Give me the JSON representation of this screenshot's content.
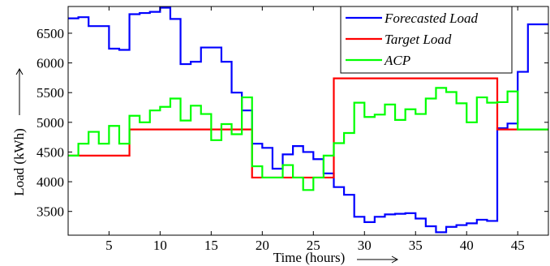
{
  "chart_data": {
    "type": "line",
    "step": true,
    "xlabel": "Time (hours)",
    "ylabel": "Load (kWh)",
    "xlim": [
      1,
      48
    ],
    "ylim": [
      3100,
      6950
    ],
    "xticks": [
      5,
      10,
      15,
      20,
      25,
      30,
      35,
      40,
      45
    ],
    "yticks": [
      3500,
      4000,
      4500,
      5000,
      5500,
      6000,
      6500
    ],
    "grid": false,
    "legend_position": "top-right",
    "x": [
      1,
      2,
      3,
      4,
      5,
      6,
      7,
      8,
      9,
      10,
      11,
      12,
      13,
      14,
      15,
      16,
      17,
      18,
      19,
      20,
      21,
      22,
      23,
      24,
      25,
      26,
      27,
      28,
      29,
      30,
      31,
      32,
      33,
      34,
      35,
      36,
      37,
      38,
      39,
      40,
      41,
      42,
      43,
      44,
      45,
      46,
      47,
      48
    ],
    "series": [
      {
        "name": "Forecasted Load",
        "color": "#0000ff",
        "values": [
          6750,
          6770,
          6620,
          6620,
          6240,
          6220,
          6820,
          6840,
          6860,
          6930,
          6740,
          5980,
          6020,
          6260,
          6260,
          6020,
          5500,
          5200,
          4640,
          4570,
          4220,
          4460,
          4600,
          4500,
          4380,
          4140,
          3910,
          3780,
          3410,
          3320,
          3410,
          3450,
          3460,
          3470,
          3380,
          3250,
          3150,
          3240,
          3270,
          3300,
          3360,
          3340,
          4900,
          4980,
          5850,
          6650,
          6650,
          6650
        ]
      },
      {
        "name": "Target Load",
        "color": "#ff0000",
        "values": [
          4440,
          4440,
          4440,
          4440,
          4440,
          4440,
          4880,
          4880,
          4880,
          4880,
          4880,
          4880,
          4880,
          4880,
          4880,
          4880,
          4880,
          4880,
          4070,
          4070,
          4070,
          4070,
          4070,
          4070,
          4070,
          4070,
          5740,
          5740,
          5740,
          5740,
          5740,
          5740,
          5740,
          5740,
          5740,
          5740,
          5740,
          5740,
          5740,
          5740,
          5740,
          5740,
          4880,
          4880,
          4880,
          4880,
          4880,
          4880
        ]
      },
      {
        "name": "ACP",
        "color": "#00ff00",
        "values": [
          4440,
          4640,
          4840,
          4640,
          4940,
          4640,
          5110,
          5000,
          5200,
          5260,
          5400,
          5030,
          5280,
          5140,
          4700,
          4970,
          4800,
          5420,
          4260,
          4070,
          4070,
          4280,
          4070,
          3860,
          4070,
          4440,
          4650,
          4820,
          5330,
          5090,
          5130,
          5300,
          5040,
          5220,
          5140,
          5400,
          5580,
          5510,
          5320,
          5000,
          5420,
          5330,
          5340,
          5520,
          4880,
          4880,
          4880,
          4880
        ]
      }
    ]
  }
}
